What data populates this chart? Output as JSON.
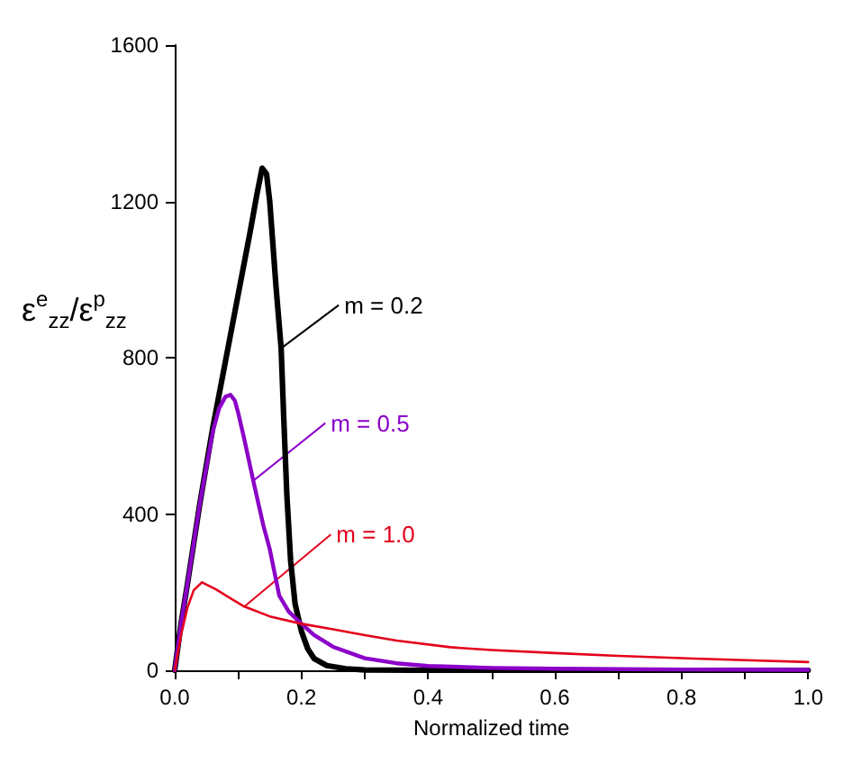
{
  "chart_data": {
    "type": "line",
    "xlabel": "Normalized time",
    "ylabel": "ε$^{e}$$_{zz}$/ε$^{p}$$_{zz}$",
    "xlim": [
      0,
      1
    ],
    "ylim": [
      0,
      1600
    ],
    "xticks": [
      {
        "value": 0,
        "label": "0.0"
      },
      {
        "value": 0.1,
        "label": null
      },
      {
        "value": 0.2,
        "label": "0.2"
      },
      {
        "value": 0.3,
        "label": null
      },
      {
        "value": 0.4,
        "label": "0.4"
      },
      {
        "value": 0.5,
        "label": null
      },
      {
        "value": 0.6,
        "label": "0.6"
      },
      {
        "value": 0.7,
        "label": null
      },
      {
        "value": 0.8,
        "label": "0.8"
      },
      {
        "value": 0.9,
        "label": null
      },
      {
        "value": 1,
        "label": "1.0"
      }
    ],
    "yticks": [
      0,
      400,
      800,
      1200,
      1600
    ],
    "grid": false,
    "marker": "none",
    "line_style": "solid",
    "series": [
      {
        "color": "#000000",
        "x": [
          0,
          0.01,
          0.02,
          0.04,
          0.06,
          0.08,
          0.1,
          0.12,
          0.13,
          0.138,
          0.145,
          0.15,
          0.155,
          0.16,
          0.168,
          0.172,
          0.177,
          0.183,
          0.19,
          0.2,
          0.21,
          0.22,
          0.24,
          0.27,
          0.3,
          0.4,
          1.0
        ],
        "values": [
          0,
          120,
          220,
          430,
          620,
          790,
          960,
          1130,
          1220,
          1285,
          1270,
          1200,
          1090,
          980,
          824,
          650,
          450,
          280,
          170,
          100,
          55,
          30,
          12,
          4,
          1,
          0,
          0
        ]
      },
      {
        "color": "#8b00c8",
        "x": [
          0,
          0.01,
          0.02,
          0.04,
          0.06,
          0.07,
          0.08,
          0.088,
          0.095,
          0.1,
          0.11,
          0.124,
          0.14,
          0.15,
          0.165,
          0.18,
          0.2,
          0.22,
          0.25,
          0.3,
          0.35,
          0.4,
          0.5,
          0.6,
          0.8,
          1.0
        ],
        "values": [
          0,
          120,
          220,
          430,
          610,
          670,
          700,
          705,
          690,
          660,
          590,
          485,
          370,
          310,
          191,
          150,
          119,
          90,
          60,
          31,
          18,
          11,
          6,
          4,
          2,
          1
        ]
      },
      {
        "color": "#e3001b",
        "x": [
          0,
          0.01,
          0.02,
          0.03,
          0.043,
          0.065,
          0.08,
          0.11,
          0.15,
          0.2,
          0.25,
          0.3,
          0.35,
          0.435,
          0.5,
          0.6,
          0.7,
          0.8,
          0.9,
          1.0
        ],
        "values": [
          0,
          90,
          160,
          205,
          225,
          207,
          192,
          163,
          138,
          119,
          105,
          90,
          76,
          59,
          52,
          44,
          37,
          31,
          26,
          21
        ]
      }
    ],
    "annotations": [
      {
        "text": "m = 0.2",
        "x": 0.168,
        "y": 824
      },
      {
        "text": "m = 0.5",
        "x": 0.124,
        "y": 485
      },
      {
        "text": "m = 1.0",
        "x": 0.11,
        "y": 163
      }
    ]
  }
}
